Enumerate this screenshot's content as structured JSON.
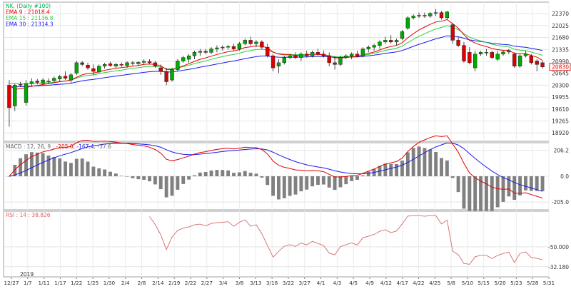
{
  "chart_data": [
    {
      "type": "candlestick",
      "legend": [
        {
          "text": "NK, (Daily #100)",
          "color": "#00b050"
        },
        {
          "text": "EMA 9 : 21018.4",
          "color": "#e60000"
        },
        {
          "text": "EMA 15 : 21136.8",
          "color": "#2ecc40"
        },
        {
          "text": "EMA 30 : 21314.3",
          "color": "#1a1aee"
        }
      ],
      "ylim": [
        18800,
        22600
      ],
      "y_ticks": [
        "22370",
        "22025",
        "21680",
        "21335",
        "20990",
        "20645",
        "20300",
        "19955",
        "19610",
        "19265",
        "18920"
      ],
      "x_labels": [
        "12/27",
        "1/7",
        "1/11",
        "1/17",
        "1/22",
        "1/25",
        "1/30",
        "2/4",
        "2/8",
        "2/14",
        "2/19",
        "2/22",
        "2/27",
        "3/4",
        "3/8",
        "3/13",
        "3/18",
        "3/22",
        "3/27",
        "4/1",
        "4/3",
        "4/5",
        "4/9",
        "4/12",
        "4/17",
        "4/22",
        "4/25",
        "5/8",
        "5/10",
        "5/15",
        "5/20",
        "5/23",
        "5/28",
        "5/31"
      ],
      "year_label": "2019",
      "last_price": "20830",
      "colors": {
        "up": "#00aa00",
        "down": "#dd0000",
        "ema9": "#e60000",
        "ema15": "#2ecc40",
        "ema30": "#1a1aee"
      },
      "candles": [
        {
          "o": 20300,
          "h": 20450,
          "l": 19100,
          "c": 19650
        },
        {
          "o": 19700,
          "h": 20350,
          "l": 19550,
          "c": 20300
        },
        {
          "o": 20320,
          "h": 20400,
          "l": 20250,
          "c": 20300
        },
        {
          "o": 19800,
          "h": 20450,
          "l": 19700,
          "c": 20350
        },
        {
          "o": 20350,
          "h": 20500,
          "l": 20250,
          "c": 20400
        },
        {
          "o": 20420,
          "h": 20480,
          "l": 20320,
          "c": 20380
        },
        {
          "o": 20350,
          "h": 20500,
          "l": 20300,
          "c": 20450
        },
        {
          "o": 20400,
          "h": 20500,
          "l": 20330,
          "c": 20420
        },
        {
          "o": 20430,
          "h": 20550,
          "l": 20380,
          "c": 20500
        },
        {
          "o": 20480,
          "h": 20600,
          "l": 20400,
          "c": 20550
        },
        {
          "o": 20560,
          "h": 20700,
          "l": 20450,
          "c": 20500
        },
        {
          "o": 20450,
          "h": 20650,
          "l": 20350,
          "c": 20600
        },
        {
          "o": 20650,
          "h": 21000,
          "l": 20600,
          "c": 20950
        },
        {
          "o": 20950,
          "h": 21000,
          "l": 20850,
          "c": 20900
        },
        {
          "o": 20880,
          "h": 20950,
          "l": 20750,
          "c": 20800
        },
        {
          "o": 20780,
          "h": 20900,
          "l": 20600,
          "c": 20700
        },
        {
          "o": 20680,
          "h": 20900,
          "l": 20650,
          "c": 20850
        },
        {
          "o": 20850,
          "h": 20950,
          "l": 20780,
          "c": 20900
        },
        {
          "o": 20920,
          "h": 20980,
          "l": 20830,
          "c": 20870
        },
        {
          "o": 20850,
          "h": 20950,
          "l": 20800,
          "c": 20900
        },
        {
          "o": 20900,
          "h": 20960,
          "l": 20830,
          "c": 20880
        },
        {
          "o": 20870,
          "h": 20990,
          "l": 20800,
          "c": 20950
        },
        {
          "o": 20950,
          "h": 21000,
          "l": 20870,
          "c": 20930
        },
        {
          "o": 20920,
          "h": 21000,
          "l": 20860,
          "c": 20960
        },
        {
          "o": 20960,
          "h": 21050,
          "l": 20900,
          "c": 20990
        },
        {
          "o": 20980,
          "h": 21050,
          "l": 20900,
          "c": 20950
        },
        {
          "o": 20950,
          "h": 21000,
          "l": 20800,
          "c": 20850
        },
        {
          "o": 20800,
          "h": 20900,
          "l": 20600,
          "c": 20700
        },
        {
          "o": 20700,
          "h": 20800,
          "l": 20300,
          "c": 20400
        },
        {
          "o": 20450,
          "h": 20800,
          "l": 20400,
          "c": 20750
        },
        {
          "o": 20750,
          "h": 21050,
          "l": 20700,
          "c": 21000
        },
        {
          "o": 21000,
          "h": 21150,
          "l": 20950,
          "c": 21100
        },
        {
          "o": 21050,
          "h": 21200,
          "l": 20950,
          "c": 21150
        },
        {
          "o": 21150,
          "h": 21300,
          "l": 21050,
          "c": 21250
        },
        {
          "o": 21250,
          "h": 21350,
          "l": 21150,
          "c": 21280
        },
        {
          "o": 21280,
          "h": 21350,
          "l": 21200,
          "c": 21250
        },
        {
          "o": 21250,
          "h": 21400,
          "l": 21200,
          "c": 21350
        },
        {
          "o": 21350,
          "h": 21450,
          "l": 21250,
          "c": 21380
        },
        {
          "o": 21380,
          "h": 21450,
          "l": 21300,
          "c": 21400
        },
        {
          "o": 21400,
          "h": 21470,
          "l": 21330,
          "c": 21420
        },
        {
          "o": 21420,
          "h": 21500,
          "l": 21300,
          "c": 21350
        },
        {
          "o": 21350,
          "h": 21550,
          "l": 21300,
          "c": 21500
        },
        {
          "o": 21500,
          "h": 21650,
          "l": 21450,
          "c": 21600
        },
        {
          "o": 21600,
          "h": 21700,
          "l": 21450,
          "c": 21500
        },
        {
          "o": 21500,
          "h": 21600,
          "l": 21400,
          "c": 21550
        },
        {
          "o": 21550,
          "h": 21600,
          "l": 21350,
          "c": 21400
        },
        {
          "o": 21400,
          "h": 21500,
          "l": 21100,
          "c": 21150
        },
        {
          "o": 21150,
          "h": 21200,
          "l": 20700,
          "c": 20800
        },
        {
          "o": 20850,
          "h": 21050,
          "l": 20650,
          "c": 20950
        },
        {
          "o": 20950,
          "h": 21150,
          "l": 20900,
          "c": 21100
        },
        {
          "o": 21100,
          "h": 21200,
          "l": 21050,
          "c": 21150
        },
        {
          "o": 21150,
          "h": 21250,
          "l": 21050,
          "c": 21100
        },
        {
          "o": 21100,
          "h": 21250,
          "l": 21000,
          "c": 21200
        },
        {
          "o": 21200,
          "h": 21300,
          "l": 21100,
          "c": 21150
        },
        {
          "o": 21150,
          "h": 21300,
          "l": 21100,
          "c": 21250
        },
        {
          "o": 21250,
          "h": 21350,
          "l": 21150,
          "c": 21200
        },
        {
          "o": 21200,
          "h": 21300,
          "l": 21100,
          "c": 21150
        },
        {
          "o": 21150,
          "h": 21250,
          "l": 20850,
          "c": 20950
        },
        {
          "o": 20950,
          "h": 21150,
          "l": 20750,
          "c": 20900
        },
        {
          "o": 20900,
          "h": 21150,
          "l": 20850,
          "c": 21100
        },
        {
          "o": 21100,
          "h": 21200,
          "l": 21050,
          "c": 21150
        },
        {
          "o": 21150,
          "h": 21250,
          "l": 21050,
          "c": 21200
        },
        {
          "o": 21200,
          "h": 21300,
          "l": 21100,
          "c": 21150
        },
        {
          "o": 21150,
          "h": 21400,
          "l": 21100,
          "c": 21350
        },
        {
          "o": 21350,
          "h": 21450,
          "l": 21250,
          "c": 21400
        },
        {
          "o": 21400,
          "h": 21500,
          "l": 21300,
          "c": 21450
        },
        {
          "o": 21450,
          "h": 21600,
          "l": 21350,
          "c": 21550
        },
        {
          "o": 21550,
          "h": 21700,
          "l": 21500,
          "c": 21600
        },
        {
          "o": 21600,
          "h": 21750,
          "l": 21500,
          "c": 21550
        },
        {
          "o": 21550,
          "h": 21650,
          "l": 21450,
          "c": 21600
        },
        {
          "o": 21650,
          "h": 21900,
          "l": 21600,
          "c": 21850
        },
        {
          "o": 21950,
          "h": 22300,
          "l": 21900,
          "c": 22250
        },
        {
          "o": 22250,
          "h": 22350,
          "l": 22200,
          "c": 22300
        },
        {
          "o": 22300,
          "h": 22400,
          "l": 22250,
          "c": 22320
        },
        {
          "o": 22320,
          "h": 22400,
          "l": 22250,
          "c": 22300
        },
        {
          "o": 22300,
          "h": 22420,
          "l": 22250,
          "c": 22380
        },
        {
          "o": 22380,
          "h": 22500,
          "l": 22300,
          "c": 22400
        },
        {
          "o": 22400,
          "h": 22450,
          "l": 22200,
          "c": 22250
        },
        {
          "o": 22250,
          "h": 22450,
          "l": 22200,
          "c": 22420
        },
        {
          "o": 22050,
          "h": 22100,
          "l": 21500,
          "c": 21600
        },
        {
          "o": 21600,
          "h": 21700,
          "l": 21400,
          "c": 21450
        },
        {
          "o": 21450,
          "h": 21550,
          "l": 20950,
          "c": 21000
        },
        {
          "o": 21250,
          "h": 21400,
          "l": 20900,
          "c": 20950
        },
        {
          "o": 20800,
          "h": 21300,
          "l": 20700,
          "c": 21200
        },
        {
          "o": 21200,
          "h": 21300,
          "l": 21150,
          "c": 21250
        },
        {
          "o": 21250,
          "h": 21350,
          "l": 21150,
          "c": 21250
        },
        {
          "o": 21250,
          "h": 21300,
          "l": 21050,
          "c": 21100
        },
        {
          "o": 21050,
          "h": 21300,
          "l": 21000,
          "c": 21200
        },
        {
          "o": 21200,
          "h": 21300,
          "l": 21150,
          "c": 21260
        },
        {
          "o": 21260,
          "h": 21350,
          "l": 21200,
          "c": 21300
        },
        {
          "o": 21200,
          "h": 21250,
          "l": 20800,
          "c": 20850
        },
        {
          "o": 20850,
          "h": 21200,
          "l": 20800,
          "c": 21150
        },
        {
          "o": 21150,
          "h": 21300,
          "l": 21100,
          "c": 21200
        },
        {
          "o": 21150,
          "h": 21200,
          "l": 20900,
          "c": 20950
        },
        {
          "o": 21000,
          "h": 21050,
          "l": 20700,
          "c": 20900
        },
        {
          "o": 20950,
          "h": 21000,
          "l": 20780,
          "c": 20830
        }
      ],
      "ema9": [
        20300,
        20180,
        20200,
        20230,
        20270,
        20290,
        20320,
        20340,
        20370,
        20400,
        20420,
        20450,
        20530,
        20600,
        20640,
        20650,
        20690,
        20730,
        20760,
        20790,
        20810,
        20830,
        20850,
        20870,
        20900,
        20910,
        20900,
        20860,
        20760,
        20750,
        20800,
        20860,
        20920,
        20990,
        21050,
        21090,
        21140,
        21190,
        21230,
        21270,
        21290,
        21330,
        21390,
        21410,
        21440,
        21430,
        21380,
        21260,
        21200,
        21180,
        21180,
        21160,
        21170,
        21170,
        21190,
        21190,
        21180,
        21130,
        21090,
        21090,
        21100,
        21120,
        21130,
        21180,
        21220,
        21260,
        21320,
        21380,
        21420,
        21450,
        21530,
        21670,
        21790,
        21900,
        21980,
        22060,
        22130,
        22150,
        22200,
        22080,
        21950,
        21760,
        21600,
        21520,
        21460,
        21420,
        21360,
        21330,
        21310,
        21310,
        21220,
        21210,
        21210,
        21160,
        21110,
        21018
      ]
    },
    {
      "type": "line",
      "legend": [
        {
          "text": "MACD : 12, 26, 9 : ",
          "color": "#666666"
        },
        {
          "text": "-205.0",
          "color": "#e60000"
        },
        {
          "text": ", ",
          "color": "#666666"
        },
        {
          "text": "-167.4",
          "color": "#1a1aee"
        },
        {
          "text": ", -37.6",
          "color": "#666666"
        }
      ],
      "ylim": [
        -250,
        250
      ],
      "y_ticks": [
        "206.2",
        "0.0",
        "-205.0"
      ],
      "histogram_color": "#808080"
    },
    {
      "type": "line",
      "legend": [
        {
          "text": "RSI : 14 : 38.826",
          "color": "#d46a6a"
        }
      ],
      "ylim": [
        25,
        80
      ],
      "y_ticks": [
        "-50.000",
        "-32.180"
      ],
      "line_color": "#d46a6a"
    }
  ]
}
